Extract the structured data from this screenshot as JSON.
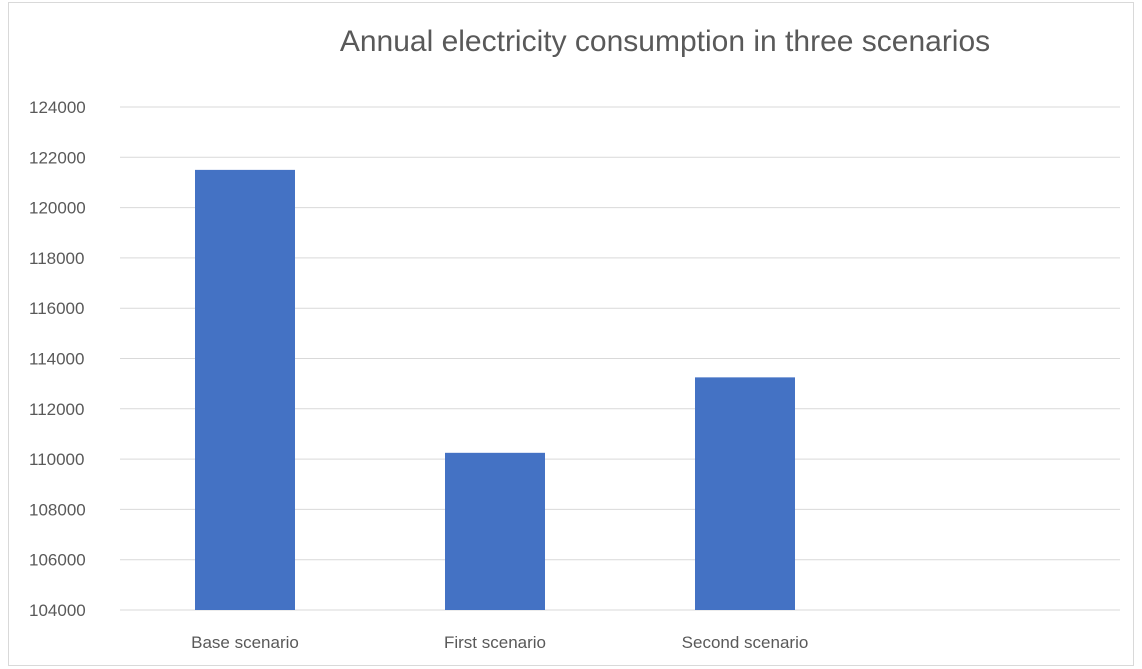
{
  "chart_data": {
    "type": "bar",
    "title": "Annual electricity consumption in three scenarios",
    "categories": [
      "Base scenario",
      "First scenario",
      "Second scenario",
      ""
    ],
    "values": [
      121500,
      110250,
      113250,
      null
    ],
    "ylim": [
      104000,
      124000
    ],
    "yticks": [
      104000,
      106000,
      108000,
      110000,
      112000,
      114000,
      116000,
      118000,
      120000,
      122000,
      124000
    ],
    "xlabel": "",
    "ylabel": "",
    "grid": true,
    "legend": "none",
    "bar_color": "#4472C4"
  }
}
